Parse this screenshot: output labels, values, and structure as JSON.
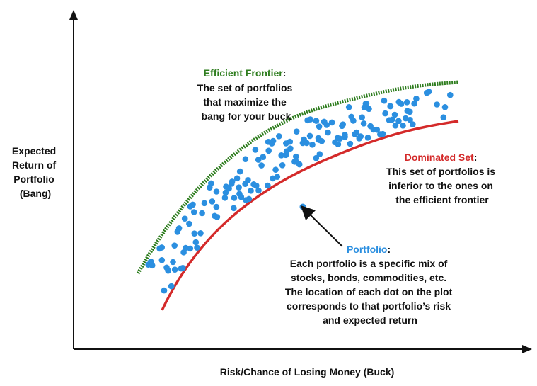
{
  "axes": {
    "y_title": [
      "Expected",
      "Return of",
      "Portfolio",
      "(Bang)"
    ],
    "x_title": "Risk/Chance of Losing Money (Buck)"
  },
  "annotations": {
    "frontier": {
      "heading": "Efficient Frontier",
      "lines": [
        "The set of portfolios",
        "that maximize the",
        "bang for your buck"
      ]
    },
    "dominated": {
      "heading": "Dominated Set",
      "lines": [
        "This set of portfolios is",
        "inferior to the ones on",
        "the efficient frontier"
      ]
    },
    "portfolio": {
      "heading": "Portfolio",
      "lines": [
        "Each portfolio is a specific mix of",
        "stocks, bonds, commodities, etc.",
        "The location of each dot on the plot",
        "corresponds to that portfolio’s risk",
        "and expected return"
      ]
    }
  },
  "colors": {
    "frontier": "#2e7d1e",
    "dominated": "#d42a2a",
    "portfolio": "#2b8fe0",
    "text": "#111111"
  }
}
